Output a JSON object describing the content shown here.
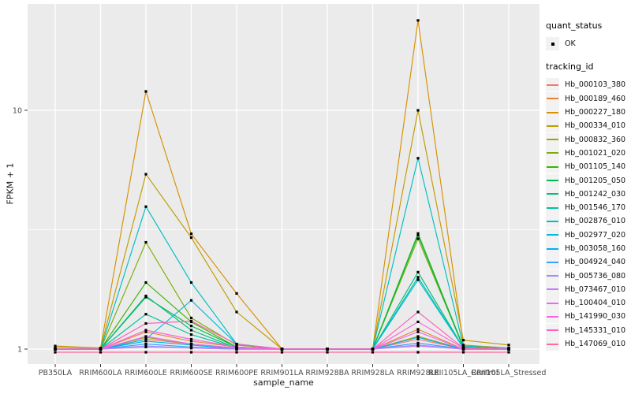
{
  "legend": {
    "quant_title": "quant_status",
    "quant_items": [
      {
        "label": "OK",
        "marker": "black-square-point"
      }
    ],
    "tracking_title": "tracking_id"
  },
  "colors": {
    "page_bg": "#FFFFFF",
    "panel_bg": "#EBEBEB",
    "grid": "#FFFFFF",
    "axis_text": "#4D4D4D",
    "axis_title": "#1A1A1A",
    "tick": "#333333",
    "point": "#000000",
    "legend_key_bg": "#F2F2F2"
  },
  "chart_data": {
    "type": "line",
    "title": "",
    "xlabel": "sample_name",
    "ylabel": "FPKM + 1",
    "y_scale": "log10",
    "y_ticks": [
      1,
      10
    ],
    "ylim": [
      0.95,
      28
    ],
    "grid": true,
    "legend_position": "right",
    "point_marker": "black-square",
    "categories": [
      "PB350LA",
      "RRIM600LA",
      "RRIM600LE",
      "RRIM600SE",
      "RRIM600PE",
      "RRIM901LA",
      "RRIM928BA",
      "RRIM928LA",
      "RRIM928LE",
      "RRII105LA_Control",
      "RRII105LA_Stressed"
    ],
    "series": [
      {
        "name": "Hb_000103_380",
        "color": "#F8766D",
        "values": [
          1.0,
          1.0,
          1.1,
          1.05,
          1.01,
          1.0,
          1.0,
          1.0,
          1.1,
          1.0,
          1.0
        ]
      },
      {
        "name": "Hb_000189_460",
        "color": "#EA8331",
        "values": [
          1.0,
          1.0,
          1.18,
          1.08,
          1.02,
          1.0,
          1.0,
          1.0,
          1.21,
          1.0,
          1.0
        ]
      },
      {
        "name": "Hb_000227_180",
        "color": "#D89000",
        "values": [
          1.02,
          1.01,
          12.0,
          3.04,
          1.71,
          1.0,
          1.0,
          1.0,
          23.8,
          1.04,
          1.01
        ]
      },
      {
        "name": "Hb_000334_010",
        "color": "#C09B00",
        "values": [
          1.03,
          1.01,
          5.4,
          2.93,
          1.43,
          1.0,
          1.0,
          1.0,
          10.0,
          1.09,
          1.04
        ]
      },
      {
        "name": "Hb_000832_360",
        "color": "#A3A500",
        "values": [
          1.0,
          1.0,
          1.12,
          1.05,
          1.01,
          1.0,
          1.0,
          1.0,
          1.13,
          1.0,
          1.0
        ]
      },
      {
        "name": "Hb_001021_020",
        "color": "#7CAE00",
        "values": [
          1.0,
          1.0,
          2.8,
          1.35,
          1.04,
          1.0,
          1.0,
          1.0,
          2.9,
          1.02,
          1.0
        ]
      },
      {
        "name": "Hb_001105_140",
        "color": "#39B600",
        "values": [
          1.0,
          1.0,
          1.9,
          1.3,
          1.02,
          1.0,
          1.0,
          1.0,
          3.05,
          1.02,
          1.0
        ]
      },
      {
        "name": "Hb_001205_050",
        "color": "#00BB4E",
        "values": [
          1.0,
          1.0,
          1.65,
          1.25,
          1.02,
          1.0,
          1.0,
          1.0,
          3.0,
          1.01,
          1.0
        ]
      },
      {
        "name": "Hb_001242_030",
        "color": "#00BF7D",
        "values": [
          1.0,
          1.0,
          1.67,
          1.2,
          1.01,
          1.0,
          1.0,
          1.0,
          2.1,
          1.01,
          1.0
        ]
      },
      {
        "name": "Hb_001546_170",
        "color": "#00C1A3",
        "values": [
          1.0,
          1.0,
          1.4,
          1.15,
          1.01,
          1.0,
          1.0,
          1.0,
          2.0,
          1.01,
          1.0
        ]
      },
      {
        "name": "Hb_002876_010",
        "color": "#00BFC4",
        "values": [
          1.0,
          1.0,
          3.95,
          1.9,
          1.05,
          1.0,
          1.0,
          1.0,
          6.3,
          1.03,
          1.01
        ]
      },
      {
        "name": "Hb_002977_020",
        "color": "#00BAE0",
        "values": [
          1.0,
          1.0,
          1.1,
          1.6,
          1.05,
          1.0,
          1.0,
          1.0,
          1.95,
          1.01,
          1.0
        ]
      },
      {
        "name": "Hb_003058_160",
        "color": "#00B0F6",
        "values": [
          1.0,
          1.0,
          1.08,
          1.04,
          1.0,
          1.0,
          1.0,
          1.0,
          1.12,
          1.0,
          1.0
        ]
      },
      {
        "name": "Hb_004924_040",
        "color": "#35A2FF",
        "values": [
          1.0,
          1.0,
          1.05,
          1.02,
          1.0,
          1.0,
          1.0,
          1.0,
          1.06,
          1.0,
          1.0
        ]
      },
      {
        "name": "Hb_005736_080",
        "color": "#9590FF",
        "values": [
          1.0,
          1.0,
          1.03,
          1.01,
          1.0,
          1.0,
          1.0,
          1.0,
          1.04,
          1.0,
          1.0
        ]
      },
      {
        "name": "Hb_073467_010",
        "color": "#C77CFF",
        "values": [
          1.0,
          1.0,
          1.02,
          1.01,
          1.0,
          1.0,
          1.0,
          1.0,
          1.03,
          1.0,
          1.0
        ]
      },
      {
        "name": "Hb_100404_010",
        "color": "#E76BF3",
        "values": [
          1.0,
          1.0,
          1.13,
          1.05,
          1.01,
          1.0,
          1.0,
          1.0,
          1.18,
          1.0,
          1.0
        ]
      },
      {
        "name": "Hb_141990_030",
        "color": "#FA62DB",
        "values": [
          1.0,
          1.0,
          1.2,
          1.1,
          1.02,
          1.0,
          1.0,
          1.0,
          1.3,
          1.01,
          1.0
        ]
      },
      {
        "name": "Hb_145331_010",
        "color": "#FF62BC",
        "values": [
          1.0,
          1.0,
          1.28,
          1.31,
          1.05,
          1.0,
          1.0,
          1.0,
          1.43,
          1.01,
          1.0
        ]
      },
      {
        "name": "Hb_147069_010",
        "color": "#FF6A98",
        "values": [
          0.97,
          0.97,
          0.97,
          0.97,
          0.97,
          0.97,
          0.97,
          0.97,
          0.97,
          0.97,
          0.97
        ]
      }
    ]
  }
}
